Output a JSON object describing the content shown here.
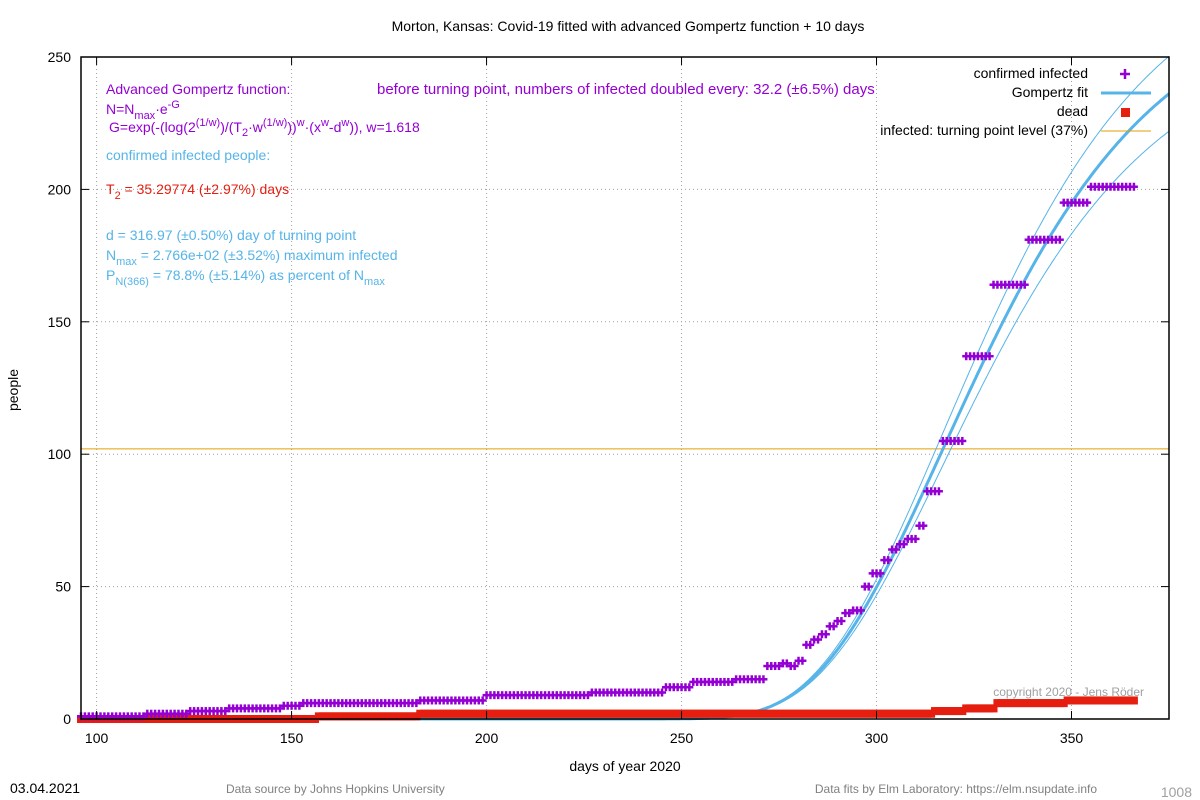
{
  "chart_data": {
    "type": "scatter",
    "title": "Morton,  Kansas: Covid-19 fitted with advanced Gompertz function + 10 days",
    "xlabel": "days of year 2020",
    "ylabel": "people",
    "xlim": [
      96,
      375
    ],
    "ylim": [
      0,
      250
    ],
    "x_ticks": [
      100,
      150,
      200,
      250,
      300,
      350
    ],
    "y_ticks": [
      0,
      50,
      100,
      150,
      200,
      250
    ],
    "grid": true,
    "legend_position": "top-right",
    "legend": {
      "confirmed": "confirmed infected",
      "fit": "Gompertz fit",
      "dead": "dead",
      "turning": "infected: turning point level (37%)"
    },
    "colors": {
      "confirmed": "#9400d3",
      "fit": "#56b4e9",
      "dead": "#e51e10",
      "turning": "#e69f00",
      "grid": "#a0a0a0",
      "copyright": "#a0a0a0",
      "footer": "#808080"
    },
    "turning_point_level": 102,
    "confirmed_steps": [
      [
        96,
        1
      ],
      [
        113,
        2
      ],
      [
        124,
        3
      ],
      [
        134,
        4
      ],
      [
        148,
        5
      ],
      [
        153,
        6
      ],
      [
        183,
        7
      ],
      [
        200,
        9
      ],
      [
        227,
        10
      ],
      [
        246,
        12
      ],
      [
        253,
        14
      ],
      [
        264,
        15
      ],
      [
        272,
        20
      ],
      [
        276,
        21
      ],
      [
        278,
        20
      ],
      [
        280,
        22
      ],
      [
        282,
        28
      ],
      [
        284,
        30
      ],
      [
        286,
        32
      ],
      [
        288,
        35
      ],
      [
        290,
        37
      ],
      [
        292,
        40
      ],
      [
        294,
        41
      ],
      [
        297,
        50
      ],
      [
        299,
        55
      ],
      [
        302,
        60
      ],
      [
        304,
        64
      ],
      [
        306,
        66
      ],
      [
        308,
        68
      ],
      [
        311,
        73
      ],
      [
        313,
        86
      ],
      [
        317,
        105
      ],
      [
        323,
        137
      ],
      [
        330,
        164
      ],
      [
        339,
        181
      ],
      [
        348,
        195
      ],
      [
        355,
        201
      ],
      [
        366,
        201
      ]
    ],
    "dead_steps": [
      [
        96,
        0
      ],
      [
        157,
        1
      ],
      [
        183,
        2
      ],
      [
        315,
        3
      ],
      [
        323,
        4
      ],
      [
        331,
        6
      ],
      [
        349,
        7
      ],
      [
        366,
        7
      ]
    ],
    "fit": {
      "N_max": 276.6,
      "d": 316.97,
      "T2": 35.29774,
      "w": 1.618,
      "x_end": 375,
      "band_relative": 0.06
    },
    "annotations": {
      "formula_title": "Advanced Gompertz function:",
      "formula_n_prefix": "N=N",
      "formula_n_sub": "max",
      "formula_n_mid": "·e",
      "formula_n_sup": "-G",
      "formula_g_1": "G=exp(-(log(2",
      "formula_g_sup1": "(1/w)",
      "formula_g_2": ")/(T",
      "formula_g_sub2": "2",
      "formula_g_3": "·w",
      "formula_g_sup3": "(1/w)",
      "formula_g_4": "))",
      "formula_g_sup4": "w",
      "formula_g_5": "·(x",
      "formula_g_sup5": "w",
      "formula_g_6": "-d",
      "formula_g_sup6": "w",
      "formula_g_7": ")), w=1.618",
      "doubling": "before turning point, numbers of infected doubled every: 32.2 (±6.5%) days",
      "section_label": "confirmed infected people:",
      "t2_prefix": "T",
      "t2_sub": "2",
      "t2_rest": " = 35.29774 (±2.97%) days",
      "d_text": "d = 316.97 (±0.50%) day of turning point",
      "nmax_prefix": "N",
      "nmax_sub": "max",
      "nmax_rest": " = 2.766e+02 (±3.52%) maximum infected",
      "p_prefix": "P",
      "p_sub": "N(366)",
      "p_rest": " = 78.8% (±5.14%) as percent of N",
      "p_sub2": "max"
    },
    "copyright": "copyright 2020 - Jens Röder"
  },
  "footer": {
    "date": "03.04.2021",
    "source": "Data source by Johns Hopkins University",
    "fits": "Data fits by Elm Laboratory: https://elm.nsupdate.info",
    "number": "1008"
  }
}
